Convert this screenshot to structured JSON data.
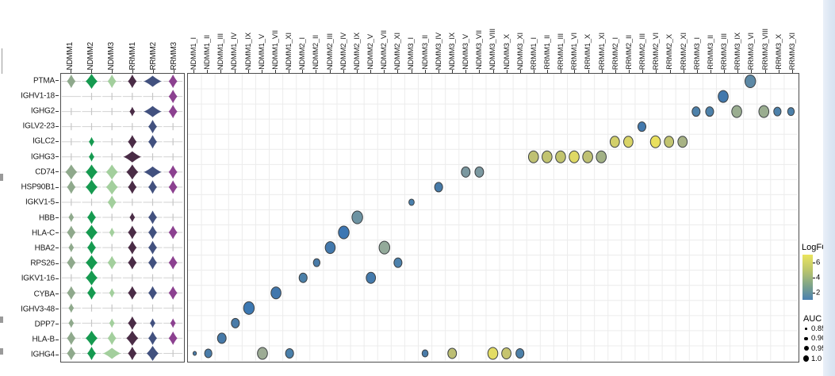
{
  "figure": {
    "kind": "violin-matrix and dot-plot figure",
    "gene_axis": [
      "PTMA",
      "IGHV1-18",
      "IGHG2",
      "IGLV2-23",
      "IGLC2",
      "IGHG3",
      "CD74",
      "HSP90B1",
      "IGKV1-5",
      "HBB",
      "HLA-C",
      "HBA2",
      "RPS26",
      "IGKV1-16",
      "CYBA",
      "IGHV3-48",
      "DPP7",
      "HLA-B",
      "IGHG4"
    ]
  },
  "legends": {
    "logfc": {
      "title": "LogFC",
      "ticks": [
        "6",
        "4",
        "2"
      ],
      "tick_values": [
        6,
        4,
        2
      ],
      "value_range": [
        1,
        7
      ],
      "gradient": [
        "#ebe55e",
        "#bac56c",
        "#7ea489",
        "#4a80b0"
      ]
    },
    "auc": {
      "title": "AUC",
      "items": [
        {
          "label": "0.85",
          "diameter": 2.5
        },
        {
          "label": "0.90",
          "diameter": 4.5
        },
        {
          "label": "0.95",
          "diameter": 6
        },
        {
          "label": "1.0",
          "diameter": 7.5
        }
      ]
    }
  },
  "chart_data": [
    {
      "type": "violin",
      "title": "",
      "rows": [
        "PTMA",
        "IGHV1-18",
        "IGHG2",
        "IGLV2-23",
        "IGLC2",
        "IGHG3",
        "CD74",
        "HSP90B1",
        "IGKV1-5",
        "HBB",
        "HLA-C",
        "HBA2",
        "RPS26",
        "IGKV1-16",
        "CYBA",
        "IGHV3-48",
        "DPP7",
        "HLA-B",
        "IGHG4"
      ],
      "columns": [
        "NDMM1",
        "NDMM2",
        "NDMM3",
        "RRMM1",
        "RRMM2",
        "RRMM3"
      ],
      "column_colors": [
        "#8fa98c",
        "#169a50",
        "#a3cf9d",
        "#4a2c46",
        "#42517f",
        "#8c4190"
      ],
      "size_scale_note": "qualitative violin width 0=absent 1=tick 2=small 3=medium 4=large 5=wide",
      "violin_sizes": [
        [
          3,
          4,
          3,
          3,
          5,
          3
        ],
        [
          0,
          1,
          1,
          1,
          1,
          3
        ],
        [
          1,
          1,
          1,
          2,
          5,
          3
        ],
        [
          1,
          1,
          1,
          1,
          3,
          1
        ],
        [
          1,
          2,
          1,
          3,
          3,
          1
        ],
        [
          1,
          2,
          1,
          5,
          1,
          1
        ],
        [
          4,
          4,
          4,
          4,
          5,
          3
        ],
        [
          3,
          4,
          4,
          3,
          3,
          3
        ],
        [
          1,
          1,
          3,
          1,
          1,
          1
        ],
        [
          2,
          3,
          1,
          2,
          3,
          1
        ],
        [
          3,
          4,
          2,
          3,
          3,
          3
        ],
        [
          2,
          3,
          1,
          3,
          3,
          1
        ],
        [
          3,
          4,
          3,
          3,
          3,
          3
        ],
        [
          1,
          4,
          1,
          1,
          1,
          1
        ],
        [
          3,
          3,
          2,
          3,
          3,
          3
        ],
        [
          2,
          1,
          1,
          1,
          1,
          1
        ],
        [
          2,
          1,
          2,
          3,
          2,
          2
        ],
        [
          3,
          4,
          3,
          4,
          3,
          3
        ],
        [
          3,
          3,
          5,
          3,
          4,
          1
        ]
      ]
    },
    {
      "type": "scatter",
      "subtype": "dot-plot",
      "title": "",
      "rows": [
        "PTMA",
        "IGHV1-18",
        "IGHG2",
        "IGLV2-23",
        "IGLC2",
        "IGHG3",
        "CD74",
        "HSP90B1",
        "IGKV1-5",
        "HBB",
        "HLA-C",
        "HBA2",
        "RPS26",
        "IGKV1-16",
        "CYBA",
        "IGHV3-48",
        "DPP7",
        "HLA-B",
        "IGHG4"
      ],
      "columns": [
        "NDMM1_I",
        "NDMM1_II",
        "NDMM1_III",
        "NDMM1_IV",
        "NDMM1_IX",
        "NDMM1_V",
        "NDMM1_VII",
        "NDMM1_XI",
        "NDMM2_I",
        "NDMM2_II",
        "NDMM2_III",
        "NDMM2_IV",
        "NDMM2_IX",
        "NDMM2_V",
        "NDMM2_VII",
        "NDMM2_XI",
        "NDMM3_I",
        "NDMM3_II",
        "NDMM3_IV",
        "NDMM3_IX",
        "NDMM3_V",
        "NDMM3_VII",
        "NDMM3_VIII",
        "NDMM3_X",
        "NDMM3_XI",
        "RRMM1_I",
        "RRMM1_II",
        "RRMM1_III",
        "RRMM1_VI",
        "RRMM1_X",
        "RRMM1_XI",
        "RRMM2_I",
        "RRMM2_II",
        "RRMM2_III",
        "RRMM2_VI",
        "RRMM2_X",
        "RRMM2_XI",
        "RRMM3_I",
        "RRMM3_II",
        "RRMM3_III",
        "RRMM3_IX",
        "RRMM3_VI",
        "RRMM3_VIII",
        "RRMM3_X",
        "RRMM3_XI"
      ],
      "grid": true,
      "color_encoding": "LogFC",
      "size_encoding": "AUC",
      "points": [
        {
          "column": "NDMM1_I",
          "gene": "IGHG4",
          "logfc": 2.0,
          "auc": 0.85,
          "color": "#4a7ca9",
          "diameter": 5
        },
        {
          "column": "NDMM1_II",
          "gene": "IGHG4",
          "logfc": 2.0,
          "auc": 0.9,
          "color": "#4a7ca9",
          "diameter": 11
        },
        {
          "column": "NDMM1_III",
          "gene": "HLA-B",
          "logfc": 2.0,
          "auc": 0.95,
          "color": "#4679a8",
          "diameter": 13
        },
        {
          "column": "NDMM1_IV",
          "gene": "DPP7",
          "logfc": 2.0,
          "auc": 0.92,
          "color": "#4a7ca9",
          "diameter": 12
        },
        {
          "column": "NDMM1_IX",
          "gene": "IGHV3-48",
          "logfc": 2.0,
          "auc": 1.0,
          "color": "#3c78b2",
          "diameter": 16
        },
        {
          "column": "NDMM1_V",
          "gene": "IGHG4",
          "logfc": 3.5,
          "auc": 1.0,
          "color": "#9cab94",
          "diameter": 15
        },
        {
          "column": "NDMM1_VII",
          "gene": "CYBA",
          "logfc": 2.0,
          "auc": 1.0,
          "color": "#4177ad",
          "diameter": 15
        },
        {
          "column": "NDMM1_XI",
          "gene": "IGHG4",
          "logfc": 2.0,
          "auc": 0.92,
          "color": "#4a80ab",
          "diameter": 12
        },
        {
          "column": "NDMM2_I",
          "gene": "IGKV1-16",
          "logfc": 2.0,
          "auc": 0.92,
          "color": "#4c80a9",
          "diameter": 12
        },
        {
          "column": "NDMM2_II",
          "gene": "RPS26",
          "logfc": 2.0,
          "auc": 0.9,
          "color": "#4a7ca9",
          "diameter": 10
        },
        {
          "column": "NDMM2_III",
          "gene": "HBA2",
          "logfc": 2.0,
          "auc": 1.0,
          "color": "#4379ad",
          "diameter": 15
        },
        {
          "column": "NDMM2_IV",
          "gene": "HLA-C",
          "logfc": 2.0,
          "auc": 1.0,
          "color": "#3d77b3",
          "diameter": 16
        },
        {
          "column": "NDMM2_IX",
          "gene": "HBB",
          "logfc": 2.5,
          "auc": 1.0,
          "color": "#6d93a2",
          "diameter": 16
        },
        {
          "column": "NDMM2_V",
          "gene": "IGKV1-16",
          "logfc": 2.0,
          "auc": 0.95,
          "color": "#447aac",
          "diameter": 14
        },
        {
          "column": "NDMM2_VII",
          "gene": "HBA2",
          "logfc": 3.5,
          "auc": 1.0,
          "color": "#93aa9a",
          "diameter": 16
        },
        {
          "column": "NDMM2_XI",
          "gene": "RPS26",
          "logfc": 2.0,
          "auc": 0.92,
          "color": "#4c81ac",
          "diameter": 12
        },
        {
          "column": "NDMM3_I",
          "gene": "IGKV1-5",
          "logfc": 2.0,
          "auc": 0.88,
          "color": "#4a80ad",
          "diameter": 8
        },
        {
          "column": "NDMM3_II",
          "gene": "IGHG4",
          "logfc": 2.0,
          "auc": 0.88,
          "color": "#4a7ca9",
          "diameter": 9
        },
        {
          "column": "NDMM3_IV",
          "gene": "HSP90B1",
          "logfc": 2.0,
          "auc": 0.92,
          "color": "#477ba9",
          "diameter": 12
        },
        {
          "column": "NDMM3_IX",
          "gene": "IGHG4",
          "logfc": 4.5,
          "auc": 0.95,
          "color": "#bcbe74",
          "diameter": 13
        },
        {
          "column": "NDMM3_V",
          "gene": "CD74",
          "logfc": 3.0,
          "auc": 0.95,
          "color": "#7b98a0",
          "diameter": 13
        },
        {
          "column": "NDMM3_VII",
          "gene": "CD74",
          "logfc": 3.0,
          "auc": 0.95,
          "color": "#7b98a0",
          "diameter": 13
        },
        {
          "column": "NDMM3_VIII",
          "gene": "IGHG4",
          "logfc": 6.0,
          "auc": 1.0,
          "color": "#e3dc64",
          "diameter": 15
        },
        {
          "column": "NDMM3_X",
          "gene": "IGHG4",
          "logfc": 5.0,
          "auc": 0.95,
          "color": "#c6c46e",
          "diameter": 14
        },
        {
          "column": "NDMM3_XI",
          "gene": "IGHG4",
          "logfc": 2.0,
          "auc": 0.92,
          "color": "#4c80a9",
          "diameter": 12
        },
        {
          "column": "RRMM1_I",
          "gene": "IGHG3",
          "logfc": 4.5,
          "auc": 1.0,
          "color": "#bfc173",
          "diameter": 15
        },
        {
          "column": "RRMM1_II",
          "gene": "IGHG3",
          "logfc": 4.5,
          "auc": 1.0,
          "color": "#c2c470",
          "diameter": 15
        },
        {
          "column": "RRMM1_III",
          "gene": "IGHG3",
          "logfc": 4.5,
          "auc": 1.0,
          "color": "#c2c46e",
          "diameter": 15
        },
        {
          "column": "RRMM1_VI",
          "gene": "IGHG3",
          "logfc": 5.5,
          "auc": 1.0,
          "color": "#dfd965",
          "diameter": 15
        },
        {
          "column": "RRMM1_X",
          "gene": "IGHG3",
          "logfc": 4.5,
          "auc": 1.0,
          "color": "#bfc173",
          "diameter": 15
        },
        {
          "column": "RRMM1_XI",
          "gene": "IGHG3",
          "logfc": 4.0,
          "auc": 1.0,
          "color": "#a2b185",
          "diameter": 15
        },
        {
          "column": "RRMM2_I",
          "gene": "IGLC2",
          "logfc": 5.0,
          "auc": 0.95,
          "color": "#d2cf6a",
          "diameter": 14
        },
        {
          "column": "RRMM2_II",
          "gene": "IGLC2",
          "logfc": 5.5,
          "auc": 0.95,
          "color": "#d9d467",
          "diameter": 14
        },
        {
          "column": "RRMM2_III",
          "gene": "IGLV2-23",
          "logfc": 2.0,
          "auc": 0.92,
          "color": "#4379ad",
          "diameter": 12
        },
        {
          "column": "RRMM2_VI",
          "gene": "IGLC2",
          "logfc": 6.5,
          "auc": 1.0,
          "color": "#e9e05e",
          "diameter": 15
        },
        {
          "column": "RRMM2_X",
          "gene": "IGLC2",
          "logfc": 4.5,
          "auc": 0.95,
          "color": "#c2c470",
          "diameter": 14
        },
        {
          "column": "RRMM2_XI",
          "gene": "IGLC2",
          "logfc": 4.0,
          "auc": 0.95,
          "color": "#a7b284",
          "diameter": 14
        },
        {
          "column": "RRMM3_I",
          "gene": "IGHG2",
          "logfc": 2.0,
          "auc": 0.92,
          "color": "#4d81aa",
          "diameter": 12
        },
        {
          "column": "RRMM3_II",
          "gene": "IGHG2",
          "logfc": 2.0,
          "auc": 0.92,
          "color": "#4d81aa",
          "diameter": 12
        },
        {
          "column": "RRMM3_III",
          "gene": "IGHV1-18",
          "logfc": 2.0,
          "auc": 1.0,
          "color": "#4379ad",
          "diameter": 15
        },
        {
          "column": "RRMM3_IX",
          "gene": "IGHG2",
          "logfc": 3.5,
          "auc": 1.0,
          "color": "#9aad90",
          "diameter": 15
        },
        {
          "column": "RRMM3_VI",
          "gene": "PTMA",
          "logfc": 2.5,
          "auc": 1.0,
          "color": "#5c88a5",
          "diameter": 16
        },
        {
          "column": "RRMM3_VIII",
          "gene": "IGHG2",
          "logfc": 3.5,
          "auc": 1.0,
          "color": "#9aad90",
          "diameter": 15
        },
        {
          "column": "RRMM3_X",
          "gene": "IGHG2",
          "logfc": 2.0,
          "auc": 0.9,
          "color": "#4d81aa",
          "diameter": 11
        },
        {
          "column": "RRMM3_XI",
          "gene": "IGHG2",
          "logfc": 2.0,
          "auc": 0.9,
          "color": "#4d81aa",
          "diameter": 10
        }
      ]
    }
  ]
}
